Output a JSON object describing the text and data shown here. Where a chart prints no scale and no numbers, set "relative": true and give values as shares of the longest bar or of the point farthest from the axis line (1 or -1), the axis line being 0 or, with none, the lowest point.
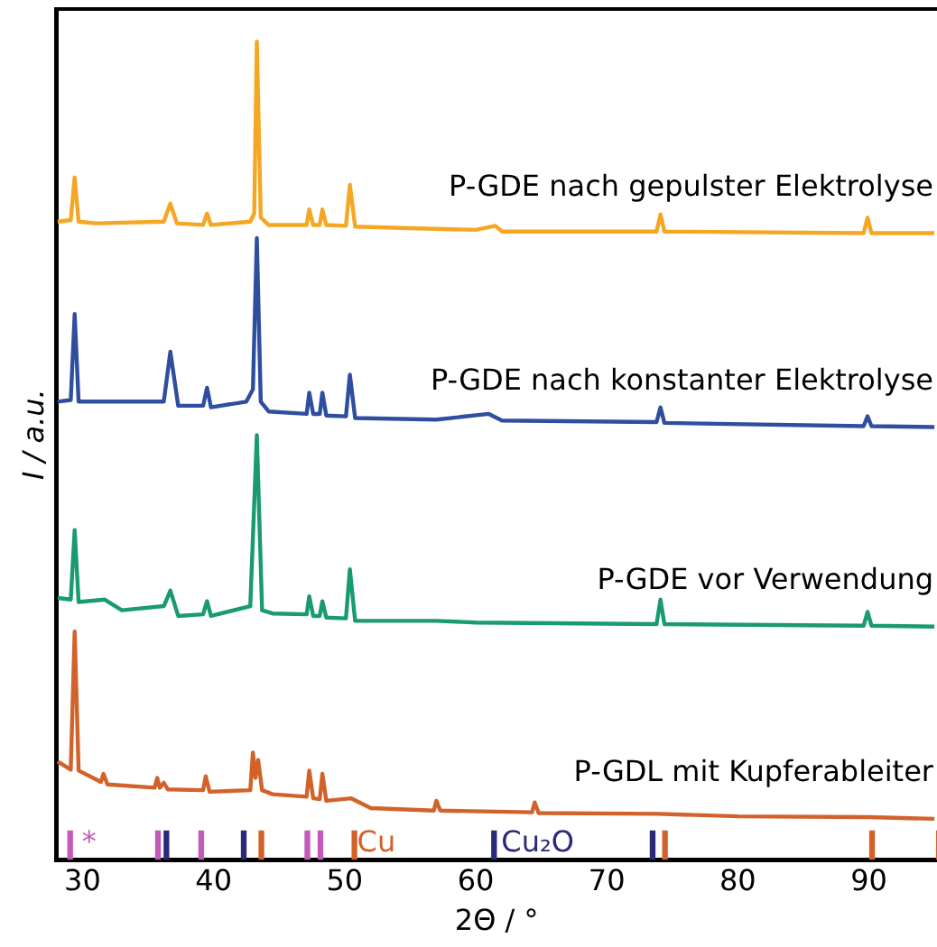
{
  "chart_data": {
    "type": "line",
    "xlabel": "2Θ / °",
    "ylabel": "I / a.u.",
    "relative": true,
    "xlim": [
      28,
      95.2
    ],
    "xticks": [
      30,
      40,
      50,
      60,
      70,
      80,
      90
    ],
    "legend": false,
    "grid": false,
    "marker": "none",
    "line_style": "solid",
    "annotations": [
      {
        "text": "*",
        "x": 29.4,
        "y": 0.035
      },
      {
        "text": "Cu",
        "x": 50.4,
        "y": 0.035
      },
      {
        "text": "Cu₂O",
        "x": 61.4,
        "y": 0.035
      }
    ],
    "series": [
      {
        "name": "P-GDE nach gepulster Elektrolyse",
        "color": "#f5a623",
        "x": [
          28.1,
          29.1,
          29.4,
          29.7,
          31,
          36.2,
          36.7,
          37.2,
          39.2,
          39.5,
          39.8,
          42.8,
          43.1,
          43.3,
          43.6,
          44.2,
          47.1,
          47.3,
          47.6,
          48.1,
          48.3,
          48.6,
          50.1,
          50.4,
          50.8,
          55,
          60,
          61.5,
          62,
          73.8,
          74.1,
          74.4,
          89.6,
          89.9,
          90.2,
          95
        ],
        "values": [
          0.78,
          0.782,
          0.834,
          0.78,
          0.778,
          0.78,
          0.802,
          0.778,
          0.776,
          0.79,
          0.776,
          0.78,
          0.79,
          1,
          0.785,
          0.776,
          0.776,
          0.795,
          0.776,
          0.776,
          0.795,
          0.776,
          0.775,
          0.825,
          0.774,
          0.772,
          0.77,
          0.775,
          0.768,
          0.768,
          0.789,
          0.768,
          0.766,
          0.785,
          0.766,
          0.766
        ]
      },
      {
        "name": "P-GDE nach konstanter Elektrolyse",
        "color": "#2f4ea0",
        "x": [
          28.1,
          29.1,
          29.4,
          29.7,
          31.5,
          36.2,
          36.7,
          37.3,
          39.2,
          39.5,
          39.8,
          42.5,
          43.0,
          43.3,
          43.6,
          44.2,
          47.1,
          47.3,
          47.6,
          48.1,
          48.3,
          48.6,
          50.1,
          50.4,
          50.8,
          57,
          61,
          62,
          73.8,
          74.1,
          74.4,
          89.6,
          89.9,
          90.2,
          95
        ],
        "values": [
          0.56,
          0.562,
          0.667,
          0.56,
          0.56,
          0.56,
          0.621,
          0.555,
          0.555,
          0.577,
          0.553,
          0.56,
          0.575,
          0.76,
          0.56,
          0.548,
          0.545,
          0.571,
          0.545,
          0.545,
          0.571,
          0.543,
          0.542,
          0.593,
          0.54,
          0.538,
          0.545,
          0.537,
          0.535,
          0.553,
          0.534,
          0.53,
          0.542,
          0.53,
          0.529
        ]
      },
      {
        "name": "P-GDE vor Verwendung",
        "color": "#1a9a72",
        "x": [
          28.1,
          29.1,
          29.4,
          29.7,
          31.7,
          33,
          36.2,
          36.7,
          37.3,
          39.2,
          39.5,
          39.8,
          42.8,
          43.3,
          43.7,
          44.5,
          47.1,
          47.3,
          47.6,
          48.1,
          48.3,
          48.6,
          50.1,
          50.4,
          50.8,
          57,
          60,
          73.8,
          74.1,
          74.4,
          89.6,
          89.9,
          90.2,
          95
        ],
        "values": [
          0.32,
          0.318,
          0.403,
          0.315,
          0.318,
          0.305,
          0.31,
          0.329,
          0.298,
          0.3,
          0.316,
          0.298,
          0.31,
          0.519,
          0.305,
          0.301,
          0.3,
          0.322,
          0.298,
          0.298,
          0.316,
          0.296,
          0.295,
          0.355,
          0.292,
          0.292,
          0.29,
          0.288,
          0.318,
          0.288,
          0.286,
          0.303,
          0.286,
          0.285
        ]
      },
      {
        "name": "P-GDL mit Kupferableiter",
        "color": "#d2622a",
        "x": [
          28.1,
          29.1,
          29.4,
          29.7,
          31.4,
          31.6,
          31.9,
          35.5,
          35.7,
          35.9,
          36.2,
          36.5,
          39.2,
          39.4,
          39.7,
          42.8,
          43.0,
          43.2,
          43.4,
          43.7,
          44.5,
          47.1,
          47.3,
          47.6,
          48.1,
          48.3,
          48.6,
          50.5,
          52,
          56.8,
          57,
          57.3,
          64.3,
          64.5,
          64.8,
          74,
          80,
          90,
          95
        ],
        "values": [
          0.12,
          0.11,
          0.279,
          0.109,
          0.095,
          0.105,
          0.092,
          0.088,
          0.1,
          0.088,
          0.094,
          0.086,
          0.085,
          0.102,
          0.083,
          0.085,
          0.131,
          0.1,
          0.122,
          0.085,
          0.08,
          0.077,
          0.109,
          0.075,
          0.074,
          0.105,
          0.072,
          0.075,
          0.063,
          0.06,
          0.072,
          0.06,
          0.058,
          0.07,
          0.057,
          0.056,
          0.053,
          0.052,
          0.05
        ]
      },
      {
        "type": "bar",
        "color": "#c45ab8",
        "x": [
          29.4,
          36.1,
          39.4,
          47.5,
          48.5
        ],
        "values": [
          0.035,
          0.035,
          0.035,
          0.035,
          0.035
        ]
      },
      {
        "type": "bar",
        "color": "#2a2a7a",
        "x": [
          36.4,
          42.3,
          61.4,
          73.5
        ],
        "values": [
          0.035,
          0.035,
          0.035,
          0.035
        ]
      },
      {
        "type": "bar",
        "color": "#d2622a",
        "x": [
          43.3,
          50.4,
          74.1,
          89.9,
          95
        ],
        "values": [
          0.035,
          0.035,
          0.035,
          0.035,
          0.035
        ]
      }
    ]
  }
}
